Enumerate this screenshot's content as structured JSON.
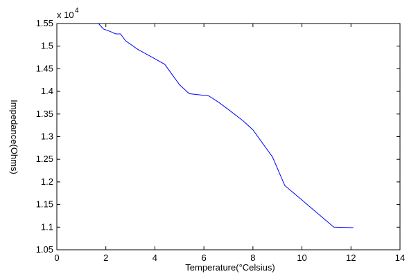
{
  "chart_data": {
    "type": "line",
    "title": "",
    "xlabel": "Temperature(°Celsius)",
    "ylabel": "Impedance(Ohms)",
    "y_multiplier": "x 10",
    "y_exponent": "4",
    "xlim": [
      0,
      14
    ],
    "ylim": [
      1.05,
      1.55
    ],
    "x_ticks": [
      0,
      2,
      4,
      6,
      8,
      10,
      12,
      14
    ],
    "x_tick_labels": [
      "0",
      "2",
      "4",
      "6",
      "8",
      "10",
      "12",
      "14"
    ],
    "y_ticks": [
      1.05,
      1.1,
      1.15,
      1.2,
      1.25,
      1.3,
      1.35,
      1.4,
      1.45,
      1.5,
      1.55
    ],
    "y_tick_labels": [
      "1.05",
      "1.1",
      "1.15",
      "1.2",
      "1.25",
      "1.3",
      "1.35",
      "1.4",
      "1.45",
      "1.5",
      "1.55"
    ],
    "grid": false,
    "line_color": "#0000ff",
    "series": [
      {
        "x": [
          1.7,
          1.9,
          2.2,
          2.4,
          2.6,
          2.8,
          3.3,
          3.8,
          4.4,
          5.0,
          5.4,
          6.2,
          6.6,
          7.0,
          7.6,
          8.0,
          8.4,
          8.8,
          9.3,
          10.0,
          11.3,
          12.1
        ],
        "y": [
          1.55,
          1.538,
          1.532,
          1.527,
          1.527,
          1.512,
          1.493,
          1.478,
          1.46,
          1.415,
          1.395,
          1.39,
          1.376,
          1.36,
          1.335,
          1.315,
          1.285,
          1.255,
          1.192,
          1.16,
          1.1,
          1.099
        ]
      }
    ]
  }
}
